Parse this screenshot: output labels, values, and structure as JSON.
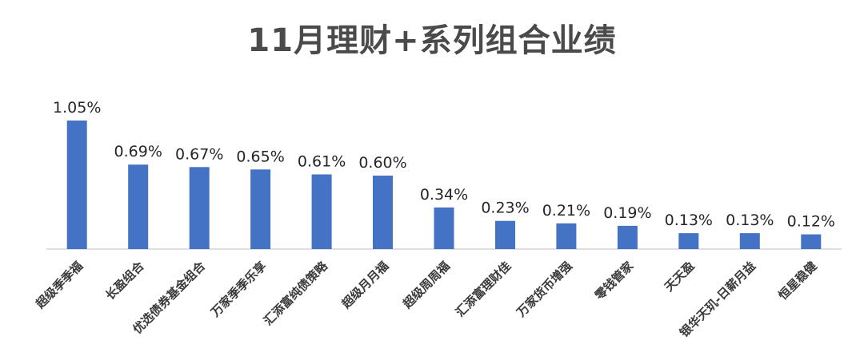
{
  "chart_data": {
    "type": "bar",
    "title": "11月理财+系列组合业绩",
    "xlabel": "",
    "ylabel": "",
    "categories": [
      "超级季季福",
      "长盈组合",
      "优选债券基金组合",
      "万家季季乐享",
      "汇添富纯债策略",
      "超级月月福",
      "超级周周福",
      "汇添富理财佳",
      "万家货币增强",
      "零钱管家",
      "天天盈",
      "银华天玑-日薪月益",
      "恒星稳健"
    ],
    "values": [
      1.05,
      0.69,
      0.67,
      0.65,
      0.61,
      0.6,
      0.34,
      0.23,
      0.21,
      0.19,
      0.13,
      0.13,
      0.12
    ],
    "value_labels": [
      "1.05%",
      "0.69%",
      "0.67%",
      "0.65%",
      "0.61%",
      "0.60%",
      "0.34%",
      "0.23%",
      "0.21%",
      "0.19%",
      "0.13%",
      "0.13%",
      "0.12%"
    ],
    "ylim": [
      0,
      1.05
    ],
    "grid": false,
    "bar_color": "#4472c4"
  }
}
